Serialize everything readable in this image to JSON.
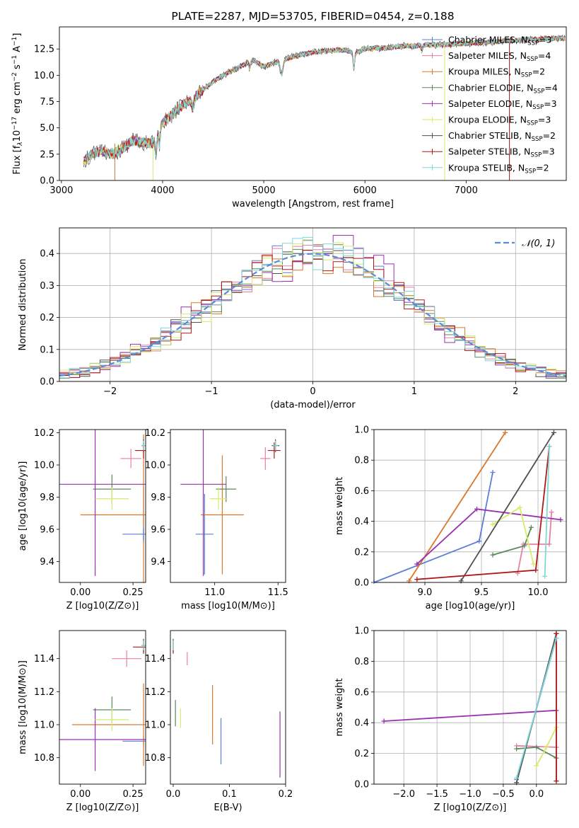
{
  "chart_data": [
    {
      "id": "spectrum",
      "type": "line",
      "title": "PLATE=2287, MJD=53705, FIBERID=0454, z=0.188",
      "xlabel": "wavelength [Angstrom, rest frame]",
      "ylabel": "Flux [f_λ10^-17 erg cm^-2 s^-1 A^-1]",
      "xlim": [
        2980,
        7990
      ],
      "ylim": [
        0,
        14.6
      ],
      "xticks": [
        "3000",
        "4000",
        "5000",
        "6000",
        "7000"
      ],
      "yticks": [
        "0.0",
        "2.5",
        "5.0",
        "7.5",
        "10.0",
        "12.5"
      ],
      "grid": false,
      "legend_position": "top-right",
      "x": [
        3220,
        3300,
        3400,
        3500,
        3600,
        3700,
        3800,
        3900,
        4000,
        4100,
        4200,
        4300,
        4400,
        4500,
        4600,
        4700,
        4800,
        4900,
        5000,
        5100,
        5200,
        5300,
        5400,
        5500,
        5600,
        5700,
        5800,
        5900,
        6000,
        6100,
        6200,
        6300,
        6400,
        6500,
        6600,
        6700,
        6800,
        6900,
        7000,
        7100,
        7200,
        7300,
        7400,
        7500,
        7600,
        7700,
        7800,
        7900
      ],
      "y": [
        1.8,
        2.5,
        2.8,
        2.5,
        3.0,
        3.8,
        3.6,
        3.5,
        5.5,
        6.3,
        7.2,
        7.8,
        8.6,
        9.4,
        10.0,
        10.5,
        11.0,
        11.4,
        10.8,
        11.2,
        11.5,
        11.8,
        12.0,
        12.2,
        12.3,
        12.4,
        12.4,
        12.1,
        12.5,
        12.6,
        12.6,
        12.7,
        12.8,
        12.8,
        12.9,
        12.9,
        12.9,
        13.0,
        13.0,
        13.1,
        13.1,
        13.2,
        13.3,
        13.3,
        13.4,
        13.4,
        13.5,
        13.5
      ],
      "series": [
        {
          "name": "Chabrier MILES, N_SSP=3",
          "color": "#5b7fd6"
        },
        {
          "name": "Salpeter MILES, N_SSP=4",
          "color": "#e87fa8"
        },
        {
          "name": "Kroupa MILES, N_SSP=2",
          "color": "#d9782b"
        },
        {
          "name": "Chabrier ELODIE, N_SSP=4",
          "color": "#5a8a5a"
        },
        {
          "name": "Salpeter ELODIE, N_SSP=3",
          "color": "#9b30b0"
        },
        {
          "name": "Kroupa ELODIE, N_SSP=3",
          "color": "#d6ea6c"
        },
        {
          "name": "Chabrier STELIB, N_SSP=2",
          "color": "#505050"
        },
        {
          "name": "Salpeter STELIB, N_SSP=3",
          "color": "#b01818"
        },
        {
          "name": "Kroupa STELIB, N_SSP=2",
          "color": "#7fd7d8"
        }
      ]
    },
    {
      "id": "residuals",
      "type": "line",
      "xlabel": "(data-model)/error",
      "ylabel": "Normed distribution",
      "xlim": [
        -2.5,
        2.5
      ],
      "ylim": [
        0,
        0.48
      ],
      "xticks": [
        "−2",
        "−1",
        "0",
        "1",
        "2"
      ],
      "yticks": [
        "0.0",
        "0.1",
        "0.2",
        "0.3",
        "0.4"
      ],
      "grid": true,
      "legend_position": "top-right",
      "reference": {
        "name": "𝒩(0, 1)",
        "color": "#5b8bd6"
      }
    },
    {
      "id": "age-vs-Z",
      "type": "scatter",
      "xlabel": "Z [log10(Z/Z⊙)]",
      "ylabel": "age  [log10(age/yr)]",
      "xlim": [
        -0.1,
        0.31
      ],
      "ylim": [
        9.27,
        10.22
      ],
      "xticks": [
        "0.00",
        "0.25"
      ],
      "yticks": [
        "9.4",
        "9.6",
        "9.8",
        "10.0",
        "10.2"
      ],
      "points": [
        {
          "x": 0.3,
          "y": 9.69,
          "xerr": 0.0,
          "yerr": 0.17,
          "color": "#5b7fd6"
        },
        {
          "x": 0.24,
          "y": 10.04,
          "xerr": 0.05,
          "yerr": 0.06,
          "color": "#e87fa8"
        },
        {
          "x": 0.3,
          "y": 9.69,
          "xerr": 0.3,
          "yerr": 0.5,
          "color": "#d9782b"
        },
        {
          "x": 0.15,
          "y": 9.85,
          "xerr": 0.09,
          "yerr": 0.09,
          "color": "#5a8a5a"
        },
        {
          "x": 0.07,
          "y": 9.88,
          "xerr": 0.44,
          "yerr": 0.57,
          "color": "#9b30b0"
        },
        {
          "x": 0.15,
          "y": 9.79,
          "xerr": 0.08,
          "yerr": 0.07,
          "color": "#d6ea6c"
        },
        {
          "x": 0.3,
          "y": 10.12,
          "xerr": 0.01,
          "yerr": 0.04,
          "color": "#505050"
        },
        {
          "x": 0.3,
          "y": 10.09,
          "xerr": 0.04,
          "yerr": 0.05,
          "color": "#b01818"
        },
        {
          "x": 0.3,
          "y": 10.12,
          "xerr": 0.01,
          "yerr": 0.03,
          "color": "#7fd7d8"
        },
        {
          "x": 0.3,
          "y": 9.57,
          "xerr": 0.1,
          "yerr": 0.04,
          "color": "#5b7fd6"
        }
      ]
    },
    {
      "id": "age-vs-mass",
      "type": "scatter",
      "xlabel": "mass [log10(M/M⊙)]",
      "ylabel": "",
      "xlim": [
        10.65,
        11.56
      ],
      "ylim": [
        9.27,
        10.22
      ],
      "xticks": [
        "11.0",
        "11.5"
      ],
      "yticks": [
        "9.4",
        "9.6",
        "9.8",
        "10.0",
        "10.2"
      ],
      "points": [
        {
          "x": 10.92,
          "y": 9.57,
          "xerr": 0.07,
          "yerr": 0.25,
          "color": "#5b7fd6"
        },
        {
          "x": 11.4,
          "y": 10.04,
          "xerr": 0.04,
          "yerr": 0.07,
          "color": "#e87fa8"
        },
        {
          "x": 11.06,
          "y": 9.69,
          "xerr": 0.17,
          "yerr": 0.37,
          "color": "#d9782b"
        },
        {
          "x": 11.09,
          "y": 9.85,
          "xerr": 0.08,
          "yerr": 0.08,
          "color": "#5a8a5a"
        },
        {
          "x": 10.91,
          "y": 9.88,
          "xerr": 0.18,
          "yerr": 0.57,
          "color": "#9b30b0"
        },
        {
          "x": 11.03,
          "y": 9.79,
          "xerr": 0.07,
          "yerr": 0.07,
          "color": "#d6ea6c"
        },
        {
          "x": 11.48,
          "y": 10.12,
          "xerr": 0.03,
          "yerr": 0.04,
          "color": "#505050"
        },
        {
          "x": 11.47,
          "y": 10.09,
          "xerr": 0.05,
          "yerr": 0.05,
          "color": "#b01818"
        },
        {
          "x": 11.48,
          "y": 10.12,
          "xerr": 0.02,
          "yerr": 0.03,
          "color": "#7fd7d8"
        }
      ]
    },
    {
      "id": "weight-vs-age",
      "type": "line",
      "xlabel": "age  [log10(age/yr)]",
      "ylabel": "mass weight",
      "xlim": [
        8.55,
        10.25
      ],
      "ylim": [
        0,
        1.0
      ],
      "xticks": [
        "9.0",
        "9.5",
        "10.0"
      ],
      "yticks": [
        "0.0",
        "0.2",
        "0.4",
        "0.6",
        "0.8",
        "1.0"
      ],
      "grid": true,
      "series": [
        {
          "name": "Chabrier MILES",
          "color": "#5b7fd6",
          "points": [
            [
              8.55,
              0.0
            ],
            [
              9.48,
              0.27
            ],
            [
              9.6,
              0.72
            ]
          ]
        },
        {
          "name": "Salpeter MILES",
          "color": "#e87fa8",
          "points": [
            [
              9.82,
              0.06
            ],
            [
              9.87,
              0.25
            ],
            [
              10.1,
              0.25
            ],
            [
              10.12,
              0.46
            ]
          ]
        },
        {
          "name": "Kroupa MILES",
          "color": "#d9782b",
          "points": [
            [
              8.86,
              0.01
            ],
            [
              9.71,
              0.98
            ]
          ]
        },
        {
          "name": "Chabrier ELODIE",
          "color": "#5a8a5a",
          "points": [
            [
              9.6,
              0.18
            ],
            [
              9.88,
              0.24
            ],
            [
              9.94,
              0.36
            ]
          ]
        },
        {
          "name": "Salpeter ELODIE",
          "color": "#9b30b0",
          "points": [
            [
              8.93,
              0.12
            ],
            [
              9.46,
              0.48
            ],
            [
              10.2,
              0.41
            ]
          ]
        },
        {
          "name": "Kroupa ELODIE",
          "color": "#d6ea6c",
          "points": [
            [
              9.6,
              0.38
            ],
            [
              9.84,
              0.49
            ],
            [
              9.96,
              0.12
            ]
          ]
        },
        {
          "name": "Chabrier STELIB",
          "color": "#505050",
          "points": [
            [
              9.32,
              0.01
            ],
            [
              10.14,
              0.98
            ]
          ]
        },
        {
          "name": "Salpeter STELIB",
          "color": "#b01818",
          "points": [
            [
              8.93,
              0.02
            ],
            [
              9.98,
              0.08
            ],
            [
              10.1,
              0.89
            ]
          ]
        },
        {
          "name": "Kroupa STELIB",
          "color": "#7fd7d8",
          "points": [
            [
              10.06,
              0.04
            ],
            [
              10.1,
              0.89
            ]
          ]
        }
      ]
    },
    {
      "id": "mass-vs-Z",
      "type": "scatter",
      "xlabel": "Z [log10(Z/Z⊙)]",
      "ylabel": "mass [log10(M/M⊙)]",
      "xlim": [
        -0.1,
        0.31
      ],
      "ylim": [
        10.64,
        11.57
      ],
      "xticks": [
        "0.00",
        "0.25"
      ],
      "yticks": [
        "10.8",
        "11.0",
        "11.2",
        "11.4"
      ],
      "points": [
        {
          "x": 0.3,
          "y": 10.9,
          "xerr": 0.1,
          "yerr": 0.03,
          "color": "#5b7fd6"
        },
        {
          "x": 0.22,
          "y": 11.4,
          "xerr": 0.07,
          "yerr": 0.05,
          "color": "#e87fa8"
        },
        {
          "x": 0.3,
          "y": 11.0,
          "xerr": 0.34,
          "yerr": 0.25,
          "color": "#d9782b"
        },
        {
          "x": 0.15,
          "y": 11.09,
          "xerr": 0.09,
          "yerr": 0.08,
          "color": "#5a8a5a"
        },
        {
          "x": 0.07,
          "y": 10.91,
          "xerr": 0.44,
          "yerr": 0.19,
          "color": "#9b30b0"
        },
        {
          "x": 0.15,
          "y": 11.03,
          "xerr": 0.08,
          "yerr": 0.07,
          "color": "#d6ea6c"
        },
        {
          "x": 0.3,
          "y": 11.48,
          "xerr": 0.01,
          "yerr": 0.04,
          "color": "#505050"
        },
        {
          "x": 0.3,
          "y": 11.47,
          "xerr": 0.05,
          "yerr": 0.04,
          "color": "#b01818"
        },
        {
          "x": 0.3,
          "y": 11.48,
          "xerr": 0.01,
          "yerr": 0.03,
          "color": "#7fd7d8"
        }
      ]
    },
    {
      "id": "mass-vs-ebv",
      "type": "scatter",
      "xlabel": "E(B-V)",
      "ylabel": "",
      "xlim": [
        -0.005,
        0.2
      ],
      "ylim": [
        10.64,
        11.57
      ],
      "xticks": [
        "0.0",
        "0.1",
        "0.2"
      ],
      "yticks": [
        "10.8",
        "11.0",
        "11.2",
        "11.4"
      ],
      "points": [
        {
          "x": 0.085,
          "y": 10.9,
          "yerr": 0.14,
          "color": "#5b7fd6"
        },
        {
          "x": 0.025,
          "y": 11.4,
          "yerr": 0.04,
          "color": "#e87fa8"
        },
        {
          "x": 0.07,
          "y": 11.06,
          "yerr": 0.18,
          "color": "#d9782b"
        },
        {
          "x": 0.004,
          "y": 11.07,
          "yerr": 0.08,
          "color": "#5a8a5a"
        },
        {
          "x": 0.19,
          "y": 10.88,
          "yerr": 0.2,
          "color": "#9b30b0"
        },
        {
          "x": 0.013,
          "y": 11.04,
          "yerr": 0.06,
          "color": "#d6ea6c"
        },
        {
          "x": 0.0,
          "y": 11.48,
          "yerr": 0.04,
          "color": "#505050"
        },
        {
          "x": 0.0,
          "y": 11.47,
          "yerr": 0.04,
          "color": "#b01818"
        },
        {
          "x": 0.0,
          "y": 11.48,
          "yerr": 0.03,
          "color": "#7fd7d8"
        }
      ]
    },
    {
      "id": "weight-vs-Z",
      "type": "line",
      "xlabel": "Z [log10(Z/Z⊙)]",
      "ylabel": "mass weight",
      "xlim": [
        -2.45,
        0.45
      ],
      "ylim": [
        0,
        1.0
      ],
      "xticks": [
        "−2.0",
        "−1.5",
        "−1.0",
        "−0.5",
        "0.0"
      ],
      "yticks": [
        "0.0",
        "0.2",
        "0.4",
        "0.6",
        "0.8",
        "1.0"
      ],
      "grid": true,
      "series": [
        {
          "name": "Chabrier MILES",
          "color": "#5b7fd6",
          "points": [
            [
              -0.3,
              0.03
            ],
            [
              0.3,
              0.95
            ]
          ]
        },
        {
          "name": "Salpeter MILES",
          "color": "#e87fa8",
          "points": [
            [
              -0.3,
              0.25
            ],
            [
              0.3,
              0.24
            ]
          ]
        },
        {
          "name": "Kroupa MILES",
          "color": "#d9782b",
          "points": [
            [
              0.3,
              0.98
            ],
            [
              0.3,
              0.02
            ]
          ]
        },
        {
          "name": "Chabrier ELODIE",
          "color": "#5a8a5a",
          "points": [
            [
              -0.3,
              0.23
            ],
            [
              0.0,
              0.24
            ],
            [
              0.3,
              0.17
            ]
          ]
        },
        {
          "name": "Salpeter ELODIE",
          "color": "#9b30b0",
          "points": [
            [
              -2.3,
              0.41
            ],
            [
              0.3,
              0.48
            ]
          ]
        },
        {
          "name": "Kroupa ELODIE",
          "color": "#d6ea6c",
          "points": [
            [
              0.0,
              0.12
            ],
            [
              0.15,
              0.24
            ],
            [
              0.3,
              0.37
            ]
          ]
        },
        {
          "name": "Chabrier STELIB",
          "color": "#505050",
          "points": [
            [
              -0.3,
              0.01
            ],
            [
              0.3,
              0.98
            ]
          ]
        },
        {
          "name": "Salpeter STELIB",
          "color": "#b01818",
          "points": [
            [
              0.3,
              0.02
            ],
            [
              0.3,
              0.98
            ]
          ]
        },
        {
          "name": "Kroupa STELIB",
          "color": "#7fd7d8",
          "points": [
            [
              -0.3,
              0.04
            ],
            [
              0.3,
              0.95
            ]
          ]
        }
      ]
    }
  ]
}
